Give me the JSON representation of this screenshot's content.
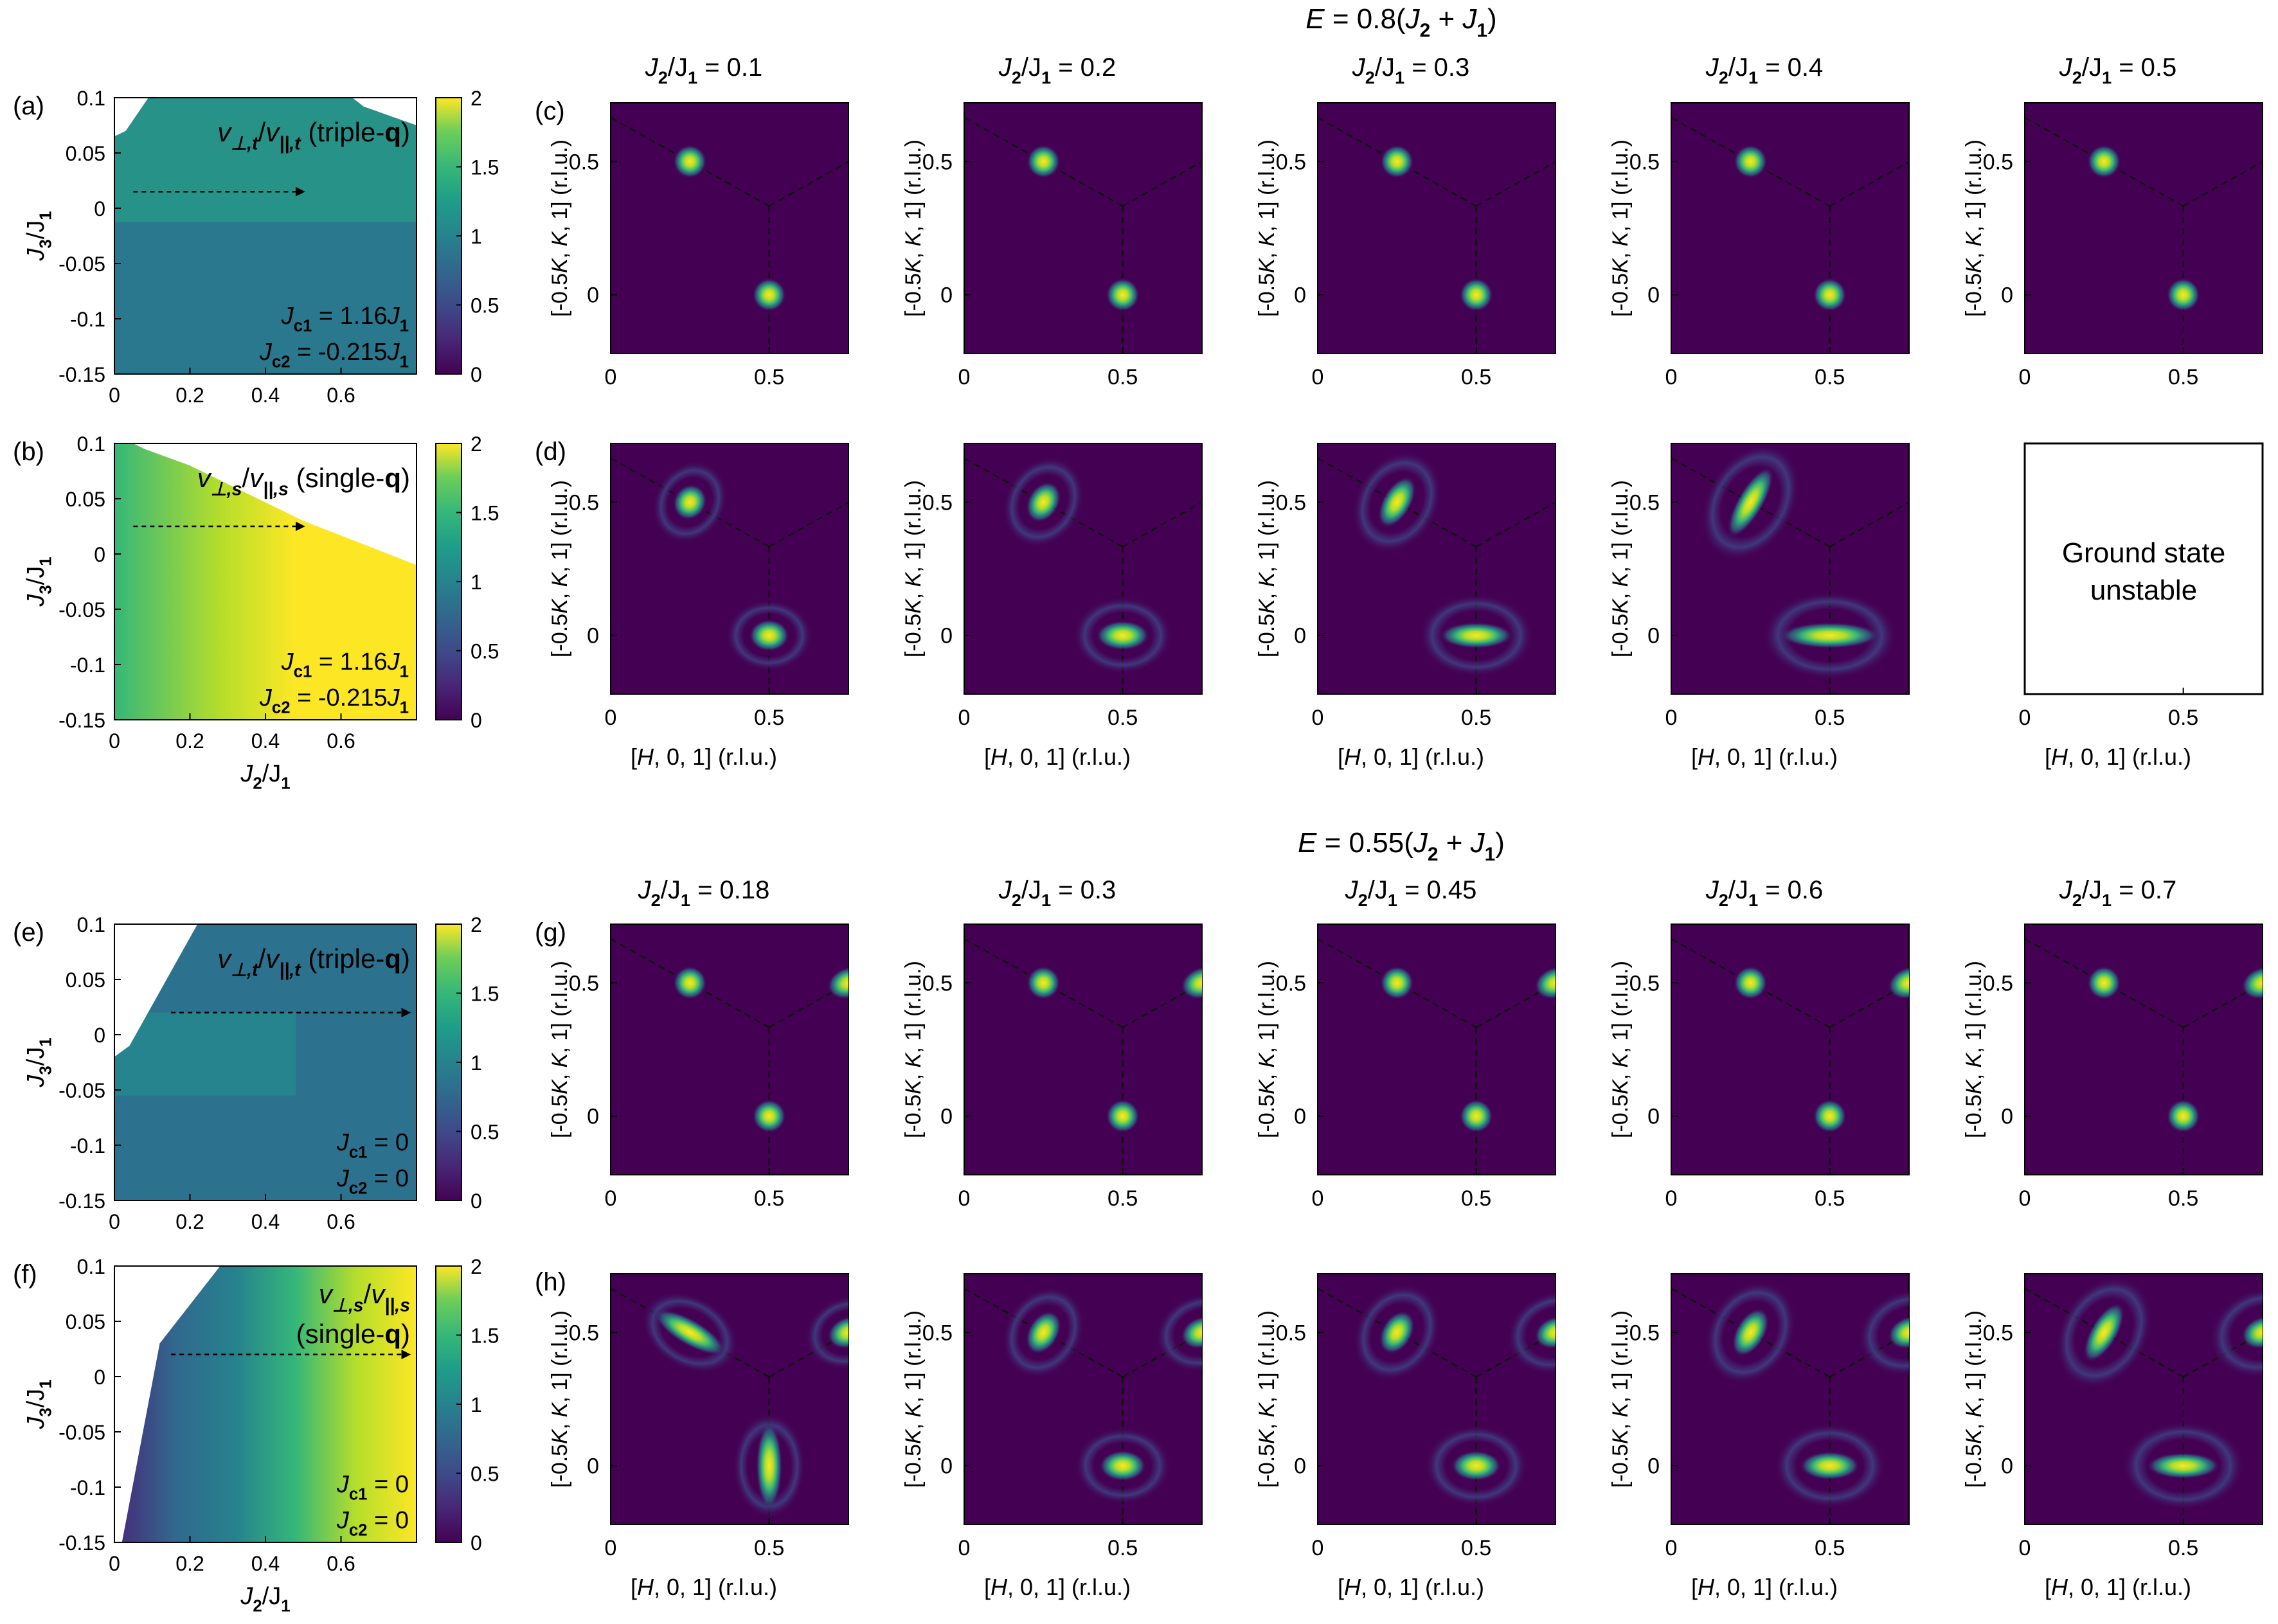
{
  "sections": [
    {
      "energy_pre": "E",
      "energy_post": " = 0.8(J",
      "energy_sub1": "2",
      "energy_mid": " + J",
      "energy_sub2": "1",
      "energy_end": ")",
      "rows": [
        {
          "panel_label": "(c)",
          "unstable_index": -1,
          "show_xlabel": false
        },
        {
          "panel_label": "(d)",
          "unstable_index": 4,
          "unstable_text": [
            "Ground state",
            "unstable"
          ],
          "show_xlabel": true
        }
      ],
      "columns": [
        "0.1",
        "0.2",
        "0.3",
        "0.4",
        "0.5"
      ],
      "left_panels": [
        {
          "label": "(a)",
          "ratio_sub_perp": "⊥,t",
          "ratio_sub_par": "||,t",
          "mode_text": "(triple-",
          "mode_bold": "q",
          "mode_end": ")",
          "jc1": "J",
          "jc1_sub": "c1",
          "jc1_val": " = 1.16J",
          "jc1_val_sub": "1",
          "jc2": "J",
          "jc2_sub": "c2",
          "jc2_val": " = -0.215J",
          "jc2_val_sub": "1",
          "annot_color": "#000000",
          "show_xlabel": false
        },
        {
          "label": "(b)",
          "ratio_sub_perp": "⊥,s",
          "ratio_sub_par": "||,s",
          "mode_text": "(single-",
          "mode_bold": "q",
          "mode_end": ")",
          "jc1": "J",
          "jc1_sub": "c1",
          "jc1_val": " = 1.16J",
          "jc1_val_sub": "1",
          "jc2": "J",
          "jc2_sub": "c2",
          "jc2_val": " = -0.215J",
          "jc2_val_sub": "1",
          "annot_color": "#000000",
          "show_xlabel": true
        }
      ]
    },
    {
      "energy_pre": "E",
      "energy_post": " = 0.55(J",
      "energy_sub1": "2",
      "energy_mid": " + J",
      "energy_sub2": "1",
      "energy_end": ")",
      "rows": [
        {
          "panel_label": "(g)",
          "unstable_index": -1,
          "show_xlabel": false
        },
        {
          "panel_label": "(h)",
          "unstable_index": -1,
          "show_xlabel": true
        }
      ],
      "columns": [
        "0.18",
        "0.3",
        "0.45",
        "0.6",
        "0.7"
      ],
      "left_panels": [
        {
          "label": "(e)",
          "ratio_sub_perp": "⊥,t",
          "ratio_sub_par": "||,t",
          "mode_text": "(triple-",
          "mode_bold": "q",
          "mode_end": ")",
          "jc1": "J",
          "jc1_sub": "c1",
          "jc1_val": " = 0",
          "jc1_val_sub": "",
          "jc2": "J",
          "jc2_sub": "c2",
          "jc2_val": " = 0",
          "jc2_val_sub": "",
          "annot_color": "#000000",
          "show_xlabel": false
        },
        {
          "label": "(f)",
          "ratio_sub_perp": "⊥,s",
          "ratio_sub_par": "||,s",
          "mode_text": "(single-",
          "mode_bold": "q",
          "mode_end": ")",
          "jc1": "J",
          "jc1_sub": "c1",
          "jc1_val": " = 0",
          "jc1_val_sub": "",
          "jc2": "J",
          "jc2_sub": "c2",
          "jc2_val": " = 0",
          "jc2_val_sub": "",
          "annot_color": "#000000",
          "show_xlabel": true
        }
      ]
    }
  ],
  "labels": {
    "col_title_prefix": "J",
    "col_title_sub1": "2",
    "col_title_mid": "/J",
    "col_title_sub2": "1",
    "col_title_eq": " = ",
    "map_ylabel": "[-0.5K, K, 1] (r.l.u.)",
    "map_xlabel": "[H, 0, 1] (r.l.u.)",
    "map_xticks": [
      "0",
      "0.5"
    ],
    "map_yticks": [
      "0.5",
      "0"
    ],
    "phase_ylabel_main": "J",
    "phase_ylabel_sub1": "3",
    "phase_ylabel_mid": "/J",
    "phase_ylabel_sub2": "1",
    "phase_xlabel_main": "J",
    "phase_xlabel_sub1": "2",
    "phase_xlabel_mid": "/J",
    "phase_xlabel_sub2": "1",
    "phase_xticks": [
      "0",
      "0.2",
      "0.4",
      "0.6"
    ],
    "phase_yticks": [
      "0.1",
      "0.05",
      "0",
      "-0.05",
      "-0.1",
      "-0.15"
    ],
    "colorbar_ticks": [
      "2",
      "1.5",
      "1",
      "0.5",
      "0"
    ],
    "ratio_v": "v"
  },
  "colors": {
    "viridis_dark": "#440154",
    "viridis_bg": "#440154",
    "viridis_yellow": "#fde725",
    "viridis_teal": "#21918c",
    "viridis_green": "#5ec962"
  },
  "chart_data": [
    {
      "type": "heatmap",
      "panel": "(a)",
      "xlabel": "J2/J1",
      "ylabel": "J3/J1",
      "xlim": [
        0,
        0.8
      ],
      "ylim": [
        -0.15,
        0.1
      ],
      "colorbar_range": [
        0,
        2
      ],
      "value_typical": 1.2,
      "unstable_region": "top-left corner"
    },
    {
      "type": "heatmap",
      "panel": "(b)",
      "xlabel": "J2/J1",
      "ylabel": "J3/J1",
      "xlim": [
        0,
        0.8
      ],
      "ylim": [
        -0.15,
        0.1
      ],
      "colorbar_range": [
        0,
        2
      ],
      "value_range": [
        1.2,
        2
      ],
      "unstable_region": "top-right triangle"
    },
    {
      "type": "heatmap",
      "panel": "(e)",
      "xlabel": "J2/J1",
      "ylabel": "J3/J1",
      "xlim": [
        0,
        0.8
      ],
      "ylim": [
        -0.15,
        0.1
      ],
      "colorbar_range": [
        0,
        2
      ],
      "value_typical": 0.9,
      "unstable_region": "top-left"
    },
    {
      "type": "heatmap",
      "panel": "(f)",
      "xlabel": "J2/J1",
      "ylabel": "J3/J1",
      "xlim": [
        0,
        0.8
      ],
      "ylim": [
        -0.15,
        0.1
      ],
      "colorbar_range": [
        0,
        2
      ],
      "value_range": [
        0.3,
        2
      ],
      "unstable_region": "left"
    }
  ]
}
